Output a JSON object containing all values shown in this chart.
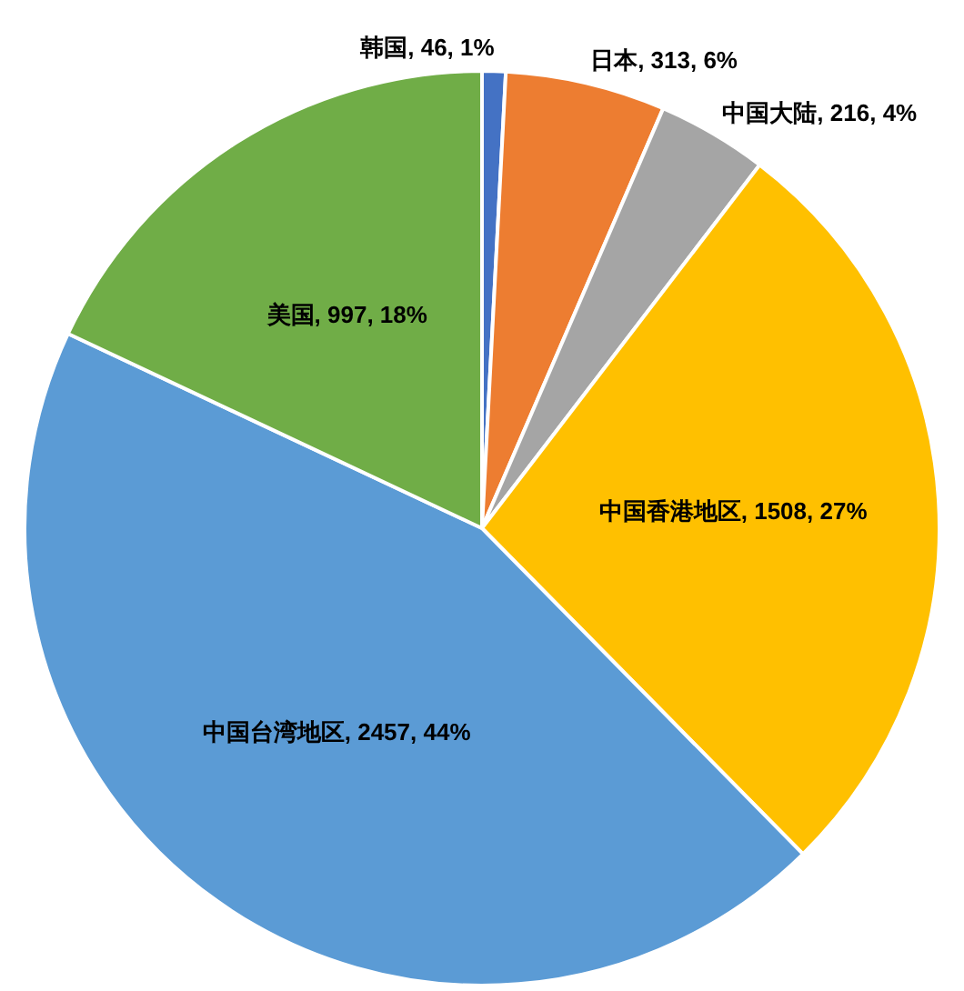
{
  "chart_data": {
    "type": "pie",
    "categories": [
      "韩国",
      "日本",
      "中国大陆",
      "中国香港地区",
      "中国台湾地区",
      "美国"
    ],
    "values": [
      46,
      313,
      216,
      1508,
      2457,
      997
    ],
    "colors": [
      "#4472c4",
      "#ed7d31",
      "#a5a5a5",
      "#ffc000",
      "#5b9bd5",
      "#70ad47"
    ],
    "value_labels": [
      "46, 1%",
      "313, 6%",
      "216, 4%",
      "1508, 27%",
      "2457, 44%",
      "997, 18%"
    ],
    "legend": false
  }
}
